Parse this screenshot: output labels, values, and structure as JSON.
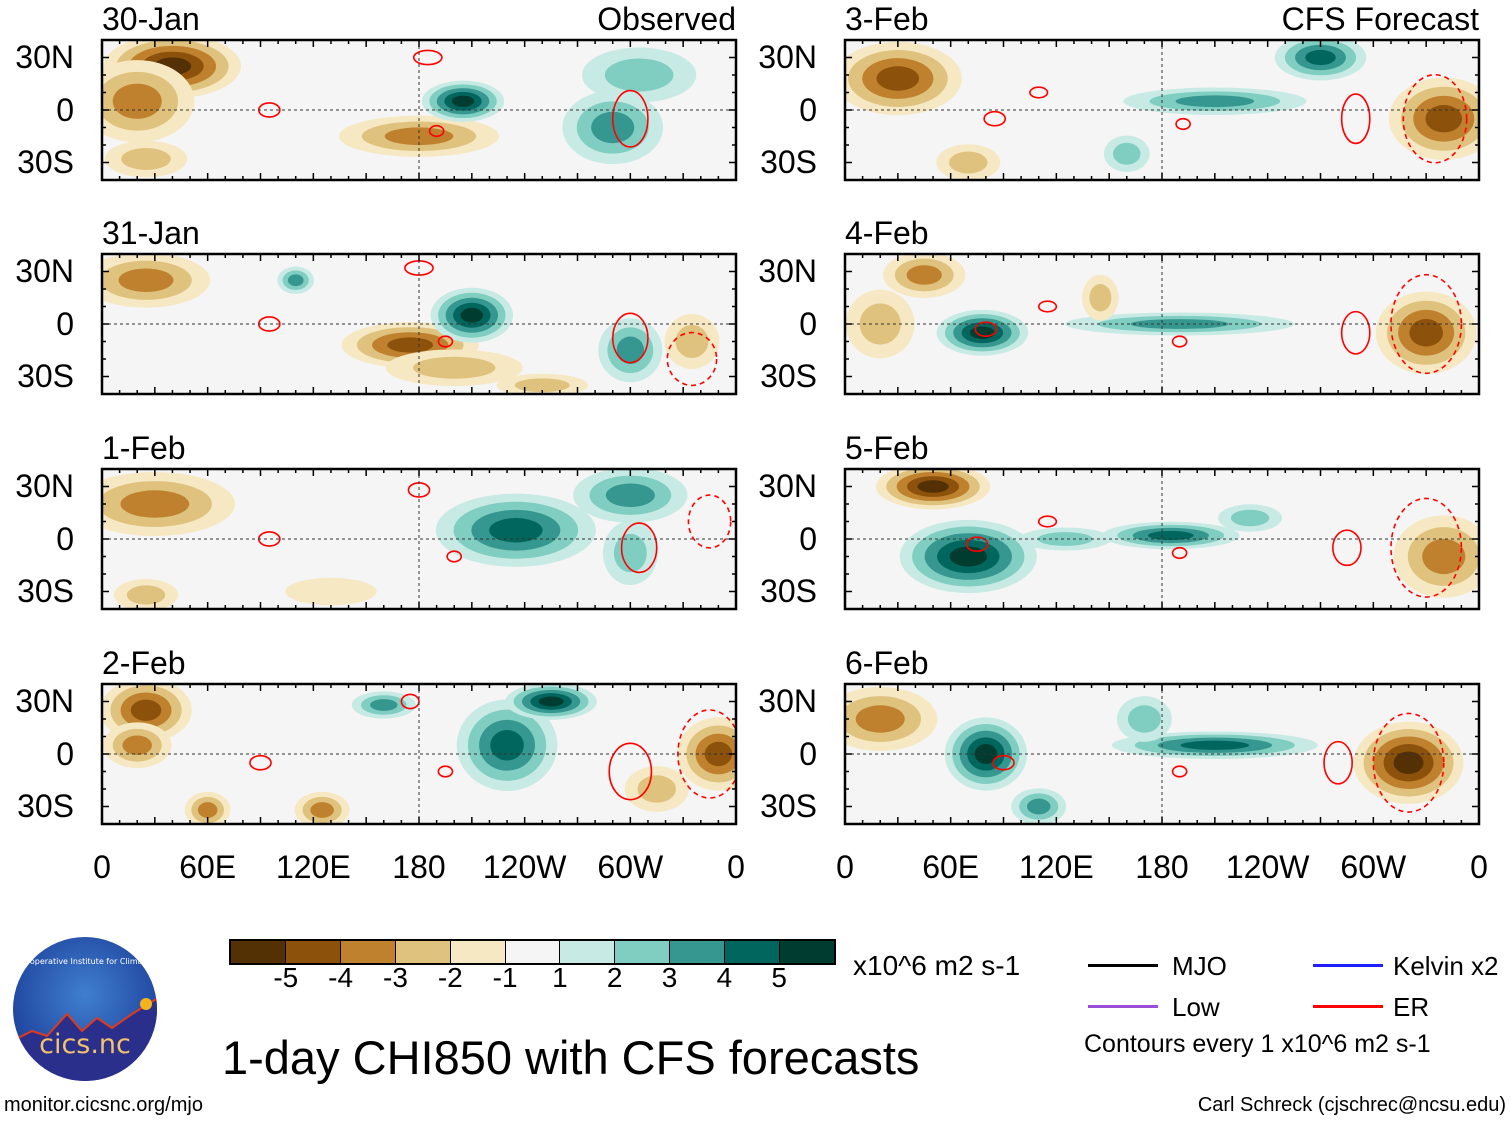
{
  "title": "1-day CHI850 with CFS forecasts",
  "left_header": "Observed",
  "right_header": "CFS Forecast",
  "panels": [
    {
      "date": "30-Jan",
      "column": "left"
    },
    {
      "date": "31-Jan",
      "column": "left"
    },
    {
      "date": "1-Feb",
      "column": "left"
    },
    {
      "date": "2-Feb",
      "column": "left"
    },
    {
      "date": "3-Feb",
      "column": "right"
    },
    {
      "date": "4-Feb",
      "column": "right"
    },
    {
      "date": "5-Feb",
      "column": "right"
    },
    {
      "date": "6-Feb",
      "column": "right"
    }
  ],
  "y_ticks": [
    "30N",
    "0",
    "30S"
  ],
  "x_ticks": [
    "0",
    "60E",
    "120E",
    "180",
    "120W",
    "60W",
    "0"
  ],
  "colorbar": {
    "colors": [
      "#543005",
      "#8c510a",
      "#bf812d",
      "#dfc27d",
      "#f6e8c3",
      "#f5f5f5",
      "#c7eae5",
      "#80cdc1",
      "#35978f",
      "#01665e",
      "#003c30"
    ],
    "labels": [
      "-5",
      "-4",
      "-3",
      "-2",
      "-1",
      "1",
      "2",
      "3",
      "4",
      "5"
    ],
    "units": "x10^6 m2 s-1"
  },
  "legend": {
    "items": [
      {
        "label": "MJO",
        "color": "#000000"
      },
      {
        "label": "Kelvin x2",
        "color": "#2020ff"
      },
      {
        "label": "Low",
        "color": "#9b4fd8"
      },
      {
        "label": "ER",
        "color": "#ff0000"
      }
    ],
    "contours_note": "Contours every 1 x10^6 m2 s-1"
  },
  "logo": {
    "ring_text": "Cooperative Institute for Climate and Satellites",
    "name": "cics.nc"
  },
  "url": "monitor.cicsnc.org/mjo",
  "credit": "Carl Schreck (cjschrec@ncsu.edu)"
}
